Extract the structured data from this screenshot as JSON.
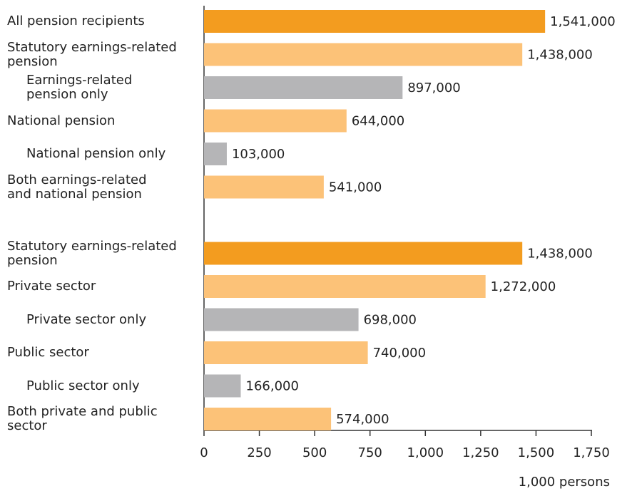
{
  "chart_data": {
    "type": "barh",
    "categories": [
      "All pension recipients",
      "Statutory earnings-related\npension",
      "Earnings-related\npension only",
      "National pension",
      "National pension only",
      "Both earnings-related\nand national pension",
      null,
      "Statutory earnings-related\npension",
      "Private sector",
      "Private sector only",
      "Public sector",
      "Public sector only",
      "Both private and public\nsector"
    ],
    "values": [
      1541,
      1438,
      897,
      644,
      103,
      541,
      null,
      1438,
      1272,
      698,
      740,
      166,
      574
    ],
    "value_labels": [
      "1,541,000",
      "1,438,000",
      "897,000",
      "644,000",
      "103,000",
      "541,000",
      null,
      "1,438,000",
      "1,272,000",
      "698,000",
      "740,000",
      "166,000",
      "574,000"
    ],
    "colors": [
      "#f39c1f",
      "#fcc278",
      "#b5b5b7",
      "#fcc278",
      "#b5b5b7",
      "#fcc278",
      null,
      "#f39c1f",
      "#fcc278",
      "#b5b5b7",
      "#fcc278",
      "#b5b5b7",
      "#fcc278"
    ],
    "indent": [
      false,
      false,
      true,
      false,
      true,
      false,
      false,
      false,
      false,
      true,
      false,
      true,
      false
    ],
    "xlabel": "1,000 persons",
    "xlim": [
      0,
      1750
    ],
    "xticks": [
      0,
      250,
      500,
      750,
      {
        "value": 1000,
        "label": "1,000"
      },
      {
        "value": 1250,
        "label": "1,250"
      },
      {
        "value": 1500,
        "label": "1,500"
      },
      {
        "value": 1750,
        "label": "1,750"
      }
    ]
  }
}
